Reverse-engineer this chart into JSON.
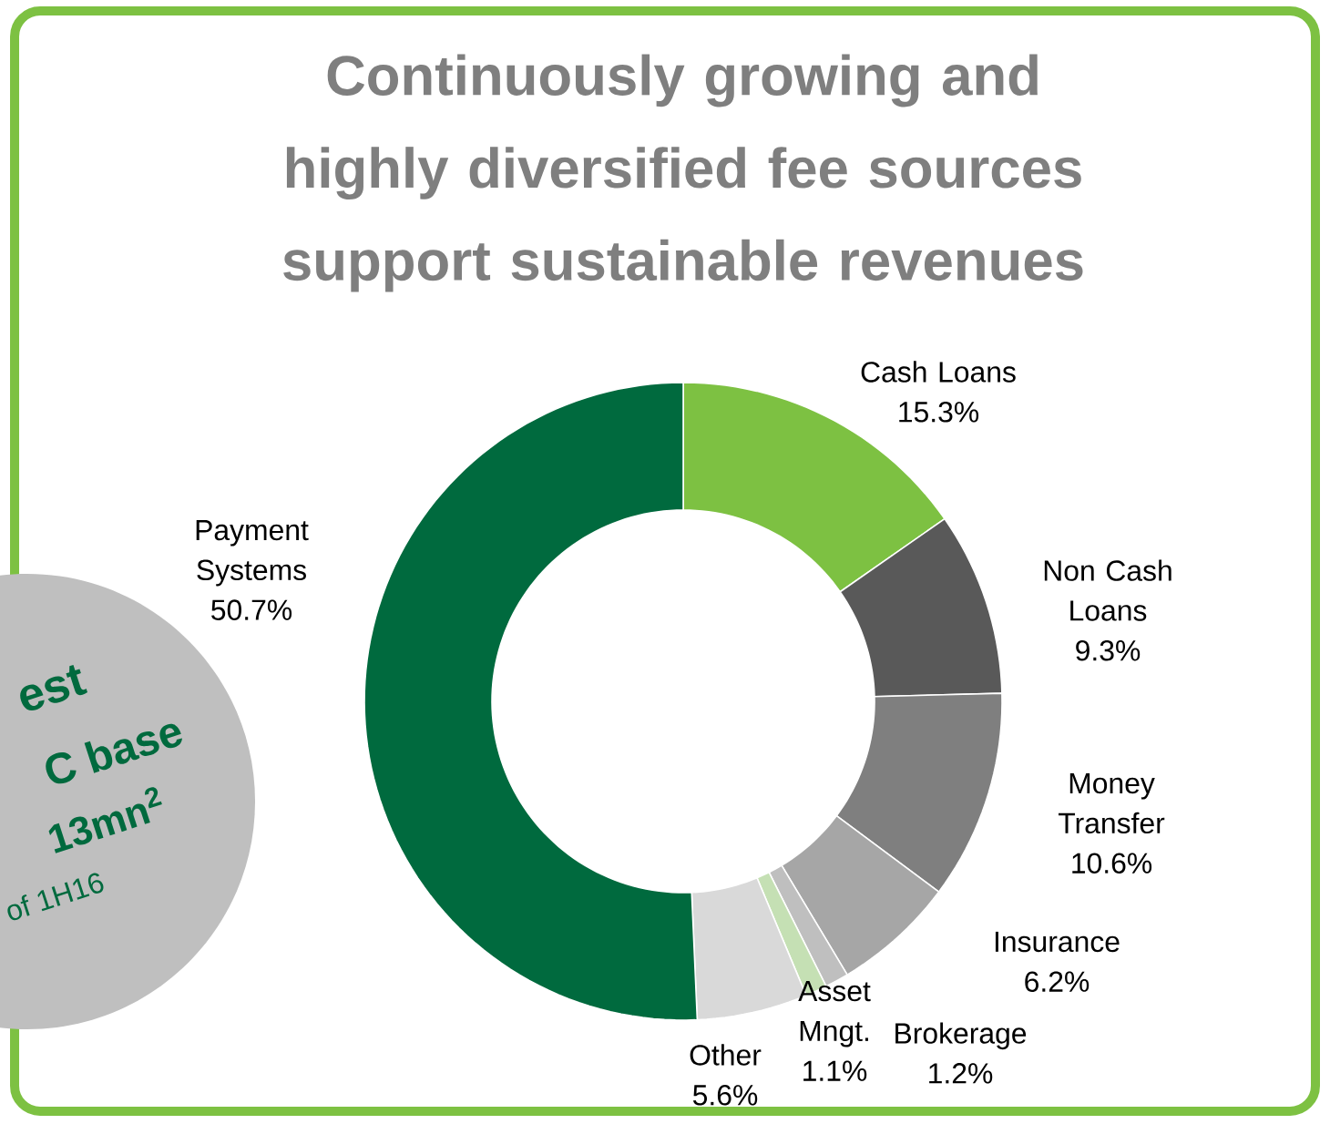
{
  "chart_data": {
    "type": "donut",
    "title": "Continuously growing and highly diversified fee sources support sustainable revenues",
    "categories": [
      "Cash Loans",
      "Non Cash Loans",
      "Money Transfer",
      "Insurance",
      "Brokerage",
      "Asset Mngt.",
      "Other",
      "Payment Systems"
    ],
    "values": [
      15.3,
      9.3,
      10.6,
      6.2,
      1.2,
      1.1,
      5.6,
      50.7
    ],
    "value_labels": [
      "15.3%",
      "9.3%",
      "10.6%",
      "6.2%",
      "1.2%",
      "1.1%",
      "5.6%",
      "50.7%"
    ],
    "colors": [
      "#7dc142",
      "#595959",
      "#7f7f7f",
      "#a6a6a6",
      "#bfbfbf",
      "#c5e0b4",
      "#d9d9d9",
      "#006a3e"
    ],
    "annotations": [
      "est",
      "C base",
      "13mn$^{2}$",
      "of 1H16"
    ]
  }
}
